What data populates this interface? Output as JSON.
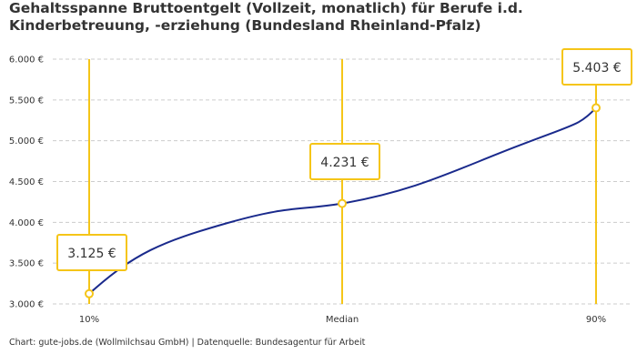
{
  "chart_data": {
    "type": "line",
    "title": "Gehaltsspanne Bruttoentgelt (Vollzeit, monatlich) für Berufe i.d. Kinderbetreuung, -erziehung (Bundesland Rheinland-Pfalz)",
    "categories": [
      "10%",
      "Median",
      "90%"
    ],
    "values": [
      3125,
      4231,
      5403
    ],
    "data_labels": [
      "3.125 €",
      "4.231 €",
      "5.403 €"
    ],
    "ylim": [
      3000,
      6000
    ],
    "yticks": [
      3000,
      3500,
      4000,
      4500,
      5000,
      5500,
      6000
    ],
    "ytick_labels": [
      "3.000 €",
      "3.500 €",
      "4.000 €",
      "4.500 €",
      "5.000 €",
      "5.500 €",
      "6.000 €"
    ],
    "grid": true,
    "xlabel": "",
    "ylabel": "",
    "colors": {
      "line": "#1a2a8c",
      "marker": "#f5c518",
      "grid": "#cccccc"
    }
  },
  "source": "Chart: gute-jobs.de (Wollmilchsau GmbH) | Datenquelle: Bundesagentur für Arbeit"
}
